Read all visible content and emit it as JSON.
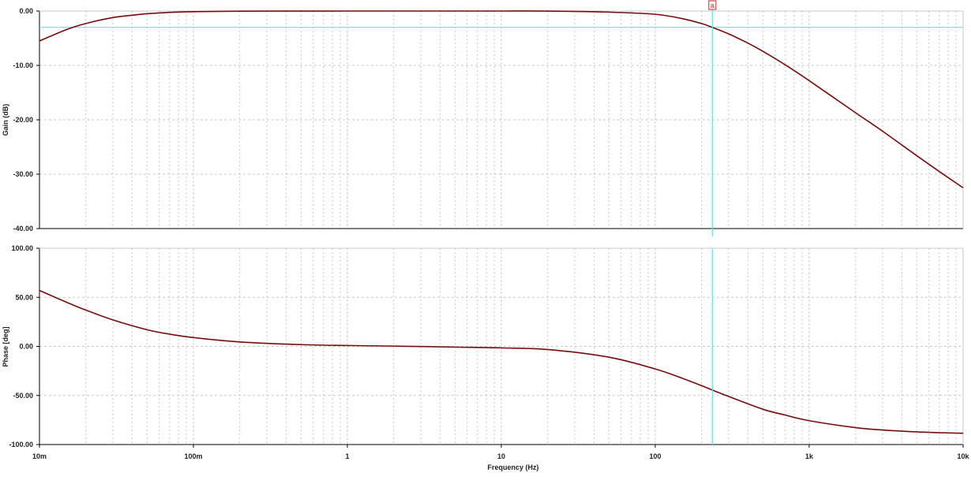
{
  "colors": {
    "background": "#ffffff",
    "grid": "#c8c8c8",
    "axis": "#000000",
    "trace": "#7a0a0a",
    "cursor": "#6fe0e8",
    "cursor_label": "#cc2222"
  },
  "cursor": {
    "label": "a",
    "frequency": 235,
    "gain_db": -3
  },
  "xlabel": "Frequency (Hz)",
  "x_ticks": [
    "10m",
    "100m",
    "1",
    "10",
    "100",
    "1k",
    "10k"
  ],
  "chart_data": [
    {
      "type": "line",
      "panel": "gain",
      "ylabel": "Gain (dB)",
      "xlabel": "",
      "xscale": "log",
      "xlim": [
        0.01,
        10000
      ],
      "ylim": [
        -40,
        0
      ],
      "grid": true,
      "y_ticks": [
        "0.00",
        "-10.00",
        "-20.00",
        "-30.00",
        "-40.00"
      ],
      "reference_line": -3,
      "series": [
        {
          "x": [
            0.01,
            0.015,
            0.02,
            0.03,
            0.05,
            0.07,
            0.1,
            0.2,
            0.5,
            1,
            2,
            5,
            10,
            20,
            50,
            100,
            150,
            200,
            235,
            300,
            400,
            500,
            700,
            1000,
            2000,
            3000,
            5000,
            7000,
            10000
          ],
          "values": [
            -5.5,
            -3.4,
            -2.3,
            -1.2,
            -0.5,
            -0.25,
            -0.12,
            -0.03,
            -0.01,
            0,
            0,
            0,
            0,
            -0.01,
            -0.2,
            -0.6,
            -1.4,
            -2.3,
            -3.0,
            -4.2,
            -5.9,
            -7.4,
            -9.9,
            -12.8,
            -18.7,
            -22.1,
            -26.6,
            -29.5,
            -32.5
          ]
        }
      ]
    },
    {
      "type": "line",
      "panel": "phase",
      "ylabel": "Phase [deg]",
      "xlabel": "Frequency (Hz)",
      "xscale": "log",
      "xlim": [
        0.01,
        10000
      ],
      "ylim": [
        -100,
        100
      ],
      "grid": true,
      "y_ticks": [
        "100.00",
        "50.00",
        "0.00",
        "-50.00",
        "-100.00"
      ],
      "series": [
        {
          "x": [
            0.01,
            0.015,
            0.02,
            0.03,
            0.05,
            0.07,
            0.1,
            0.2,
            0.5,
            1,
            2,
            5,
            10,
            20,
            50,
            100,
            150,
            200,
            235,
            300,
            500,
            700,
            1000,
            2000,
            3000,
            5000,
            7000,
            10000
          ],
          "values": [
            57,
            45,
            37,
            27,
            17,
            12.5,
            9,
            4.6,
            1.8,
            0.9,
            0.3,
            -0.7,
            -1.5,
            -3.2,
            -11,
            -23,
            -32.5,
            -40,
            -44.5,
            -51,
            -64,
            -70,
            -75.7,
            -82.8,
            -85.2,
            -87.1,
            -87.9,
            -88.5
          ]
        }
      ]
    }
  ]
}
